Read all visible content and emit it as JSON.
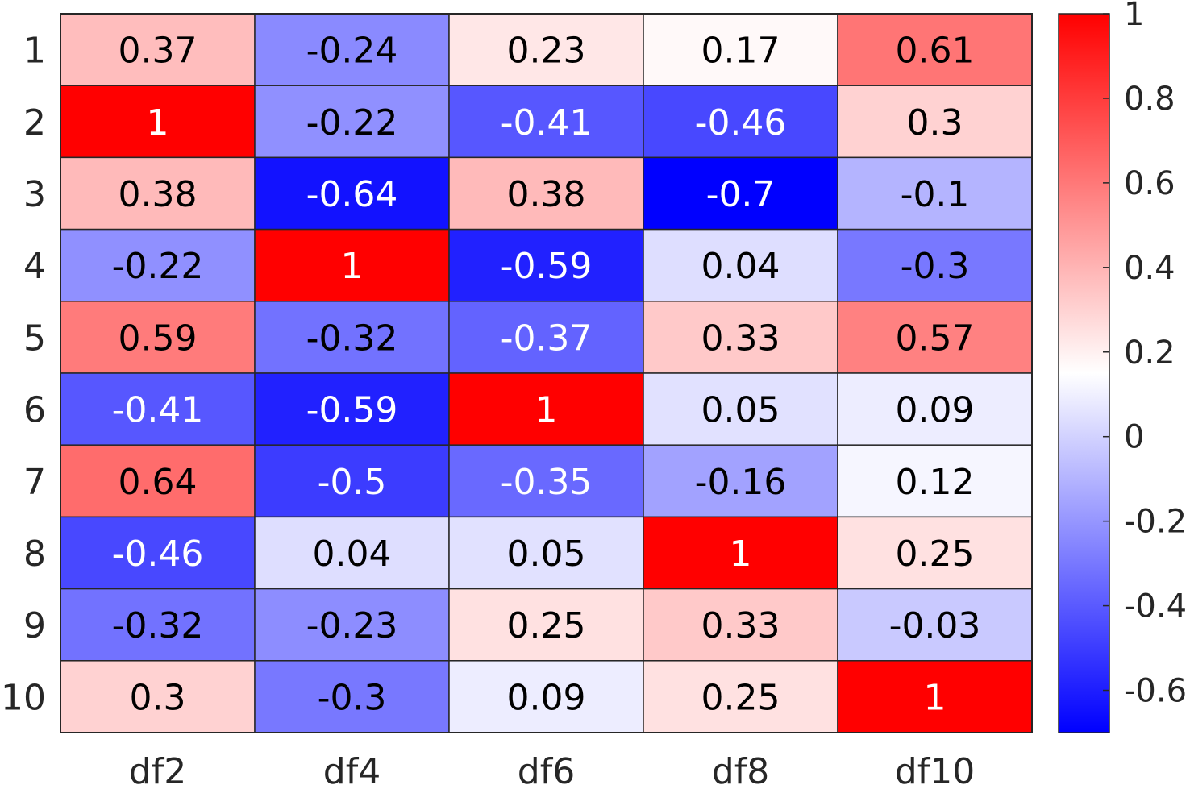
{
  "chart_data": {
    "type": "heatmap",
    "title": "",
    "xlabel": "",
    "ylabel": "",
    "columns": [
      "df2",
      "df4",
      "df6",
      "df8",
      "df10"
    ],
    "rows": [
      "1",
      "2",
      "3",
      "4",
      "5",
      "6",
      "7",
      "8",
      "9",
      "10"
    ],
    "values": [
      [
        0.37,
        -0.24,
        0.23,
        0.17,
        0.61
      ],
      [
        1,
        -0.22,
        -0.41,
        -0.46,
        0.3
      ],
      [
        0.38,
        -0.64,
        0.38,
        -0.7,
        -0.1
      ],
      [
        -0.22,
        1,
        -0.59,
        0.04,
        -0.3
      ],
      [
        0.59,
        -0.32,
        -0.37,
        0.33,
        0.57
      ],
      [
        -0.41,
        -0.59,
        1,
        0.05,
        0.09
      ],
      [
        0.64,
        -0.5,
        -0.35,
        -0.16,
        0.12
      ],
      [
        -0.46,
        0.04,
        0.05,
        1,
        0.25
      ],
      [
        -0.32,
        -0.23,
        0.25,
        0.33,
        -0.03
      ],
      [
        0.3,
        -0.3,
        0.09,
        0.25,
        1
      ]
    ],
    "value_labels": [
      [
        "0.37",
        "-0.24",
        "0.23",
        "0.17",
        "0.61"
      ],
      [
        "1",
        "-0.22",
        "-0.41",
        "-0.46",
        "0.3"
      ],
      [
        "0.38",
        "-0.64",
        "0.38",
        "-0.7",
        "-0.1"
      ],
      [
        "-0.22",
        "1",
        "-0.59",
        "0.04",
        "-0.3"
      ],
      [
        "0.59",
        "-0.32",
        "-0.37",
        "0.33",
        "0.57"
      ],
      [
        "-0.41",
        "-0.59",
        "1",
        "0.05",
        "0.09"
      ],
      [
        "0.64",
        "-0.5",
        "-0.35",
        "-0.16",
        "0.12"
      ],
      [
        "-0.46",
        "0.04",
        "0.05",
        "1",
        "0.25"
      ],
      [
        "-0.32",
        "-0.23",
        "0.25",
        "0.33",
        "-0.03"
      ],
      [
        "0.3",
        "-0.3",
        "0.09",
        "0.25",
        "1"
      ]
    ],
    "colorbar": {
      "range": [
        -0.7,
        1
      ],
      "ticks": [
        1,
        0.8,
        0.6,
        0.4,
        0.2,
        0,
        -0.2,
        -0.4,
        -0.6
      ],
      "tick_labels": [
        "1",
        "0.8",
        "0.6",
        "0.4",
        "0.2",
        "0",
        "-0.2",
        "-0.4",
        "-0.6"
      ],
      "low_color": "#0000ff",
      "mid_color": "#ffffff",
      "high_color": "#ff0000",
      "white_point": 0.15
    },
    "grid": true,
    "legend": "colorbar-right"
  }
}
